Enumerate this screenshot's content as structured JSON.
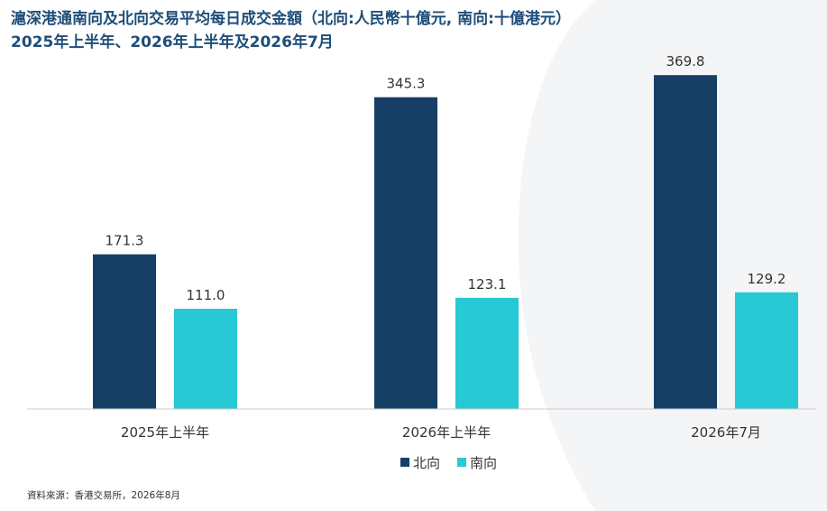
{
  "title": {
    "line1": "滬深港通南向及北向交易平均每日成交金額（北向:人民幣十億元, 南向:十億港元）",
    "line2": "2025年上半年、2026年上半年及2026年7月"
  },
  "source": "資料來源：香港交易所，2026年8月",
  "colors": {
    "northbound": "#173f66",
    "southbound": "#26c9d4",
    "title": "#1f4e79",
    "background_arc": "#f2f3f5"
  },
  "chart_data": {
    "type": "bar",
    "categories": [
      "2025年上半年",
      "2026年上半年",
      "2026年7月"
    ],
    "series": [
      {
        "name": "北向",
        "values": [
          171.3,
          345.3,
          369.8
        ]
      },
      {
        "name": "南向",
        "values": [
          111.0,
          123.1,
          129.2
        ]
      }
    ],
    "data_labels": [
      [
        "171.3",
        "345.3",
        "369.8"
      ],
      [
        "111.0",
        "123.1",
        "129.2"
      ]
    ],
    "ylim": [
      0,
      400
    ],
    "grid": false,
    "legend_position": "bottom-center"
  }
}
